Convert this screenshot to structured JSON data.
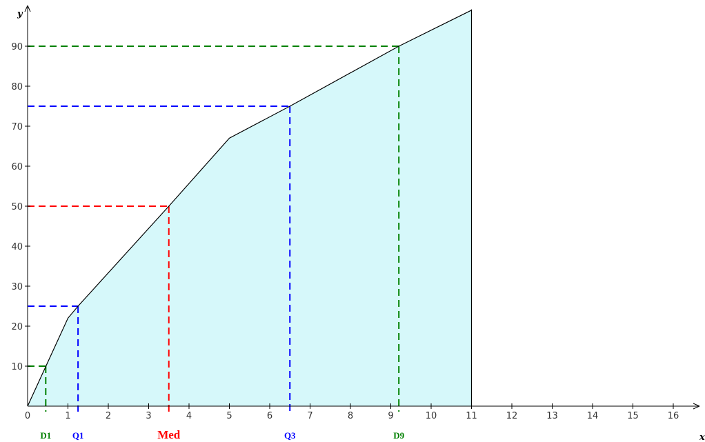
{
  "chart_data": {
    "type": "area",
    "xlabel": "x",
    "ylabel": "y",
    "xlim": [
      0,
      16.6
    ],
    "ylim": [
      0,
      99.2
    ],
    "x_ticks": [
      "0",
      "1",
      "2",
      "3",
      "4",
      "5",
      "6",
      "7",
      "8",
      "9",
      "10",
      "11",
      "12",
      "13",
      "14",
      "15",
      "16"
    ],
    "y_ticks": [
      "10",
      "20",
      "30",
      "40",
      "50",
      "60",
      "70",
      "80",
      "90"
    ],
    "grid": false,
    "fill_color": "#d6f8fa",
    "line_color": "#000000",
    "series": [
      {
        "x": [
          0,
          1,
          1.25,
          3.5,
          5,
          6.5,
          9.2,
          11
        ],
        "y": [
          0,
          22,
          25,
          50,
          67,
          75,
          90,
          99
        ]
      }
    ],
    "end_line_x": 11,
    "markers": [
      {
        "label": "D1",
        "x": 0.45,
        "y": 10,
        "color": "#008000",
        "size": 13
      },
      {
        "label": "Q1",
        "x": 1.25,
        "y": 25,
        "color": "#0000ff",
        "size": 13
      },
      {
        "label": "Med",
        "x": 3.5,
        "y": 50,
        "color": "#ff0000",
        "size": 17
      },
      {
        "label": "Q3",
        "x": 6.5,
        "y": 75,
        "color": "#0000ff",
        "size": 13
      },
      {
        "label": "D9",
        "x": 9.2,
        "y": 90,
        "color": "#008000",
        "size": 13
      }
    ]
  }
}
